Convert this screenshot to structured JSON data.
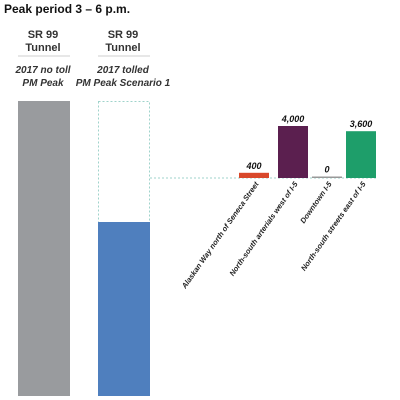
{
  "title": "Peak period 3 – 6 p.m.",
  "chart_data": {
    "type": "bar",
    "columns": [
      {
        "header_line1": "SR 99",
        "header_line2": "Tunnel",
        "sub_line1": "2017 no toll",
        "sub_line2": "PM Peak",
        "fill": "#999b9e"
      },
      {
        "header_line1": "SR 99",
        "header_line2": "Tunnel",
        "sub_line1": "2017 tolled",
        "sub_line2": "PM Peak Scenario 1",
        "fill": "#4f7fbe",
        "retained_fraction": 0.59
      }
    ],
    "diversions": {
      "categories": [
        "Alaskan Way north of Seneca Street",
        "North-south arterials west of I-5",
        "Downtown I-5",
        "North-south streets east of I-5"
      ],
      "values": [
        400,
        4000,
        0,
        3600
      ],
      "value_labels": [
        "400",
        "4,000",
        "0",
        "3,600"
      ],
      "colors": [
        "#d9482b",
        "#5b1f4f",
        "#999999",
        "#1e9e6a"
      ]
    }
  }
}
